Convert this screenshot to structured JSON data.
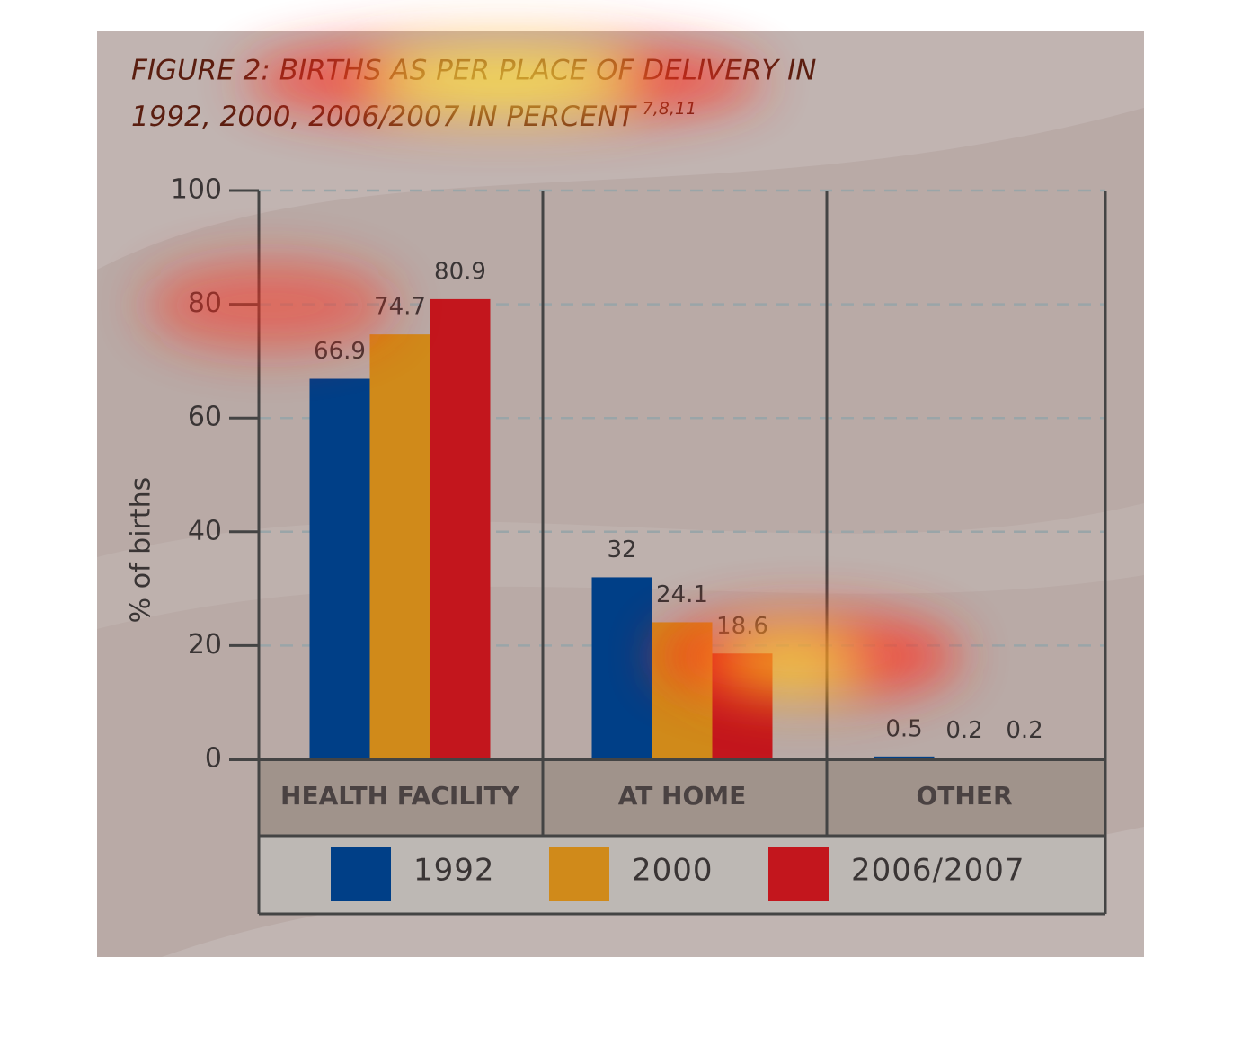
{
  "chart_data": {
    "type": "bar",
    "title_lines": [
      "FIGURE 2: BIRTHS AS PER PLACE OF DELIVERY IN",
      "1992, 2000, 2006/2007 IN PERCENT"
    ],
    "title_superscript": "7,8,11",
    "y_label": "% of births",
    "categories": [
      "HEALTH FACILITY",
      "AT HOME",
      "OTHER"
    ],
    "series": [
      {
        "name": "1992",
        "color": "#003f87",
        "values": [
          66.9,
          32,
          0.5
        ]
      },
      {
        "name": "2000",
        "color": "#d08a1a",
        "values": [
          74.7,
          24.1,
          0.2
        ]
      },
      {
        "name": "2006/2007",
        "color": "#c3161d",
        "values": [
          80.9,
          18.6,
          0.2
        ]
      }
    ],
    "ylim": [
      0,
      100
    ],
    "yticks": [
      0,
      20,
      40,
      60,
      80,
      100
    ],
    "grid": true,
    "legend": "bottom"
  }
}
